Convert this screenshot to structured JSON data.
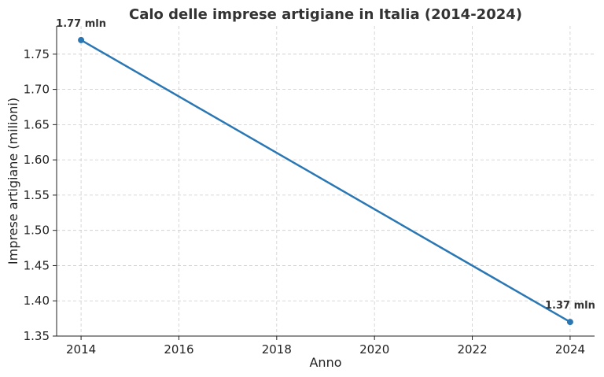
{
  "chart_data": {
    "type": "line",
    "title": "Calo delle imprese artigiane in Italia (2014-2024)",
    "xlabel": "Anno",
    "ylabel": "Imprese artigiane (milioni)",
    "x": [
      2014,
      2024
    ],
    "series": [
      {
        "values": [
          1.77,
          1.37
        ],
        "color": "#2a77b4"
      }
    ],
    "xlim": [
      2013.5,
      2024.5
    ],
    "ylim": [
      1.35,
      1.79
    ],
    "x_ticks": [
      "2014",
      "2016",
      "2018",
      "2020",
      "2022",
      "2024"
    ],
    "y_ticks": [
      "1.35",
      "1.40",
      "1.45",
      "1.50",
      "1.55",
      "1.60",
      "1.65",
      "1.70",
      "1.75"
    ],
    "data_labels": [
      "1.77 mln",
      "1.37 mln"
    ],
    "grid": true
  }
}
